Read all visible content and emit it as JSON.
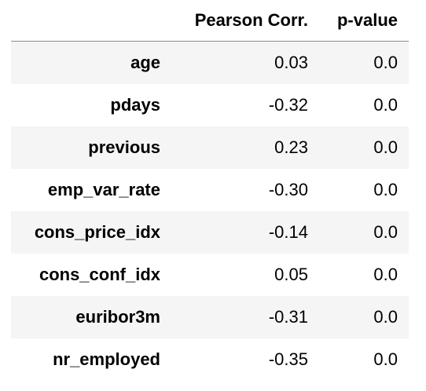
{
  "table": {
    "columns": {
      "corner": "",
      "pearson_corr": "Pearson Corr.",
      "p_value": "p-value"
    },
    "rows": [
      {
        "label": "age",
        "pearson_corr": "0.03",
        "p_value": "0.0"
      },
      {
        "label": "pdays",
        "pearson_corr": "-0.32",
        "p_value": "0.0"
      },
      {
        "label": "previous",
        "pearson_corr": "0.23",
        "p_value": "0.0"
      },
      {
        "label": "emp_var_rate",
        "pearson_corr": "-0.30",
        "p_value": "0.0"
      },
      {
        "label": "cons_price_idx",
        "pearson_corr": "-0.14",
        "p_value": "0.0"
      },
      {
        "label": "cons_conf_idx",
        "pearson_corr": "0.05",
        "p_value": "0.0"
      },
      {
        "label": "euribor3m",
        "pearson_corr": "-0.31",
        "p_value": "0.0"
      },
      {
        "label": "nr_employed",
        "pearson_corr": "-0.35",
        "p_value": "0.0"
      }
    ]
  },
  "colors": {
    "row_stripe": "#f5f5f5",
    "header_rule": "#8c8c8c",
    "text": "#000000"
  }
}
